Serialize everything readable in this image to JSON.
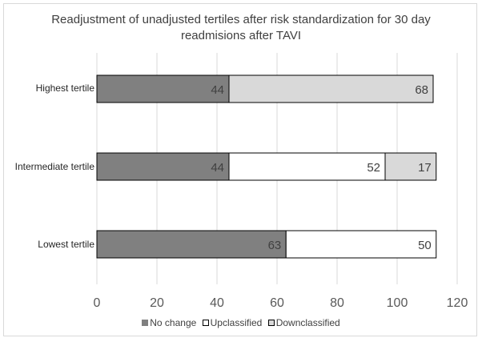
{
  "chart_data": {
    "type": "bar",
    "orientation": "horizontal",
    "stacked": true,
    "title": "Readjustment of unadjusted tertiles after risk standardization for 30 day readmisions after TAVI",
    "title_lines": [
      "Readjustment of unadjusted tertiles after risk standardization for 30 day",
      "readmisions after TAVI"
    ],
    "categories": [
      "Highest tertile",
      "Intermediate tertile",
      "Lowest tertile"
    ],
    "series": [
      {
        "name": "No change",
        "color": "#808080",
        "values": [
          44,
          44,
          63
        ]
      },
      {
        "name": "Upclassified",
        "color": "#ffffff",
        "values": [
          null,
          52,
          50
        ]
      },
      {
        "name": "Downclassified",
        "color": "#d9d9d9",
        "values": [
          68,
          17,
          null
        ]
      }
    ],
    "xlim": [
      0,
      120
    ],
    "xticks": [
      "0",
      "20",
      "40",
      "60",
      "80",
      "100",
      "120"
    ],
    "grid": "vertical",
    "legend_position": "bottom",
    "xlabel": "",
    "ylabel": ""
  }
}
